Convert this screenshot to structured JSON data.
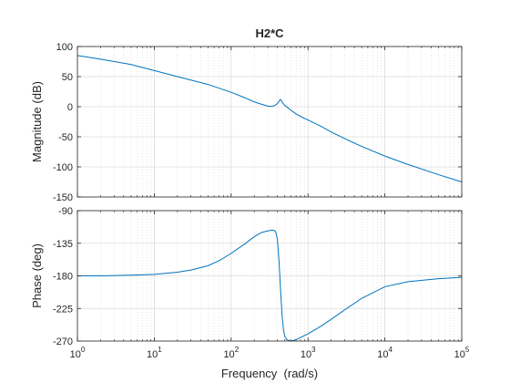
{
  "chart_data": [
    {
      "type": "line",
      "title": "H2*C",
      "xlabel": "",
      "ylabel": "Magnitude (dB)",
      "xscale": "log",
      "xlim": [
        1,
        100000
      ],
      "ylim": [
        -150,
        100
      ],
      "yticks": [
        100,
        50,
        0,
        -50,
        -100,
        -150
      ],
      "grid": true,
      "line_color": "#0072BD",
      "series": [
        {
          "x": [
            1,
            2,
            5,
            10,
            20,
            50,
            100,
            150,
            200,
            250,
            300,
            340,
            370,
            390,
            410,
            420,
            430,
            440,
            450,
            470,
            500,
            550,
            600,
            700,
            850,
            1000,
            1500,
            2000,
            3000,
            5000,
            10000,
            20000,
            50000,
            100000
          ],
          "y": [
            85,
            79,
            70,
            60,
            50,
            37,
            24,
            15,
            8,
            4,
            1,
            0.5,
            2,
            4,
            7,
            9,
            11,
            12,
            10,
            6,
            2,
            -2,
            -6,
            -12,
            -18,
            -22,
            -33,
            -42,
            -53,
            -66,
            -82,
            -96,
            -113,
            -125
          ]
        }
      ]
    },
    {
      "type": "line",
      "title": "",
      "xlabel": "Frequency  (rad/s)",
      "ylabel": "Phase (deg)",
      "xscale": "log",
      "xlim": [
        1,
        100000
      ],
      "ylim": [
        -270,
        -90
      ],
      "yticks": [
        -90,
        -135,
        -180,
        -225,
        -270
      ],
      "xticks": [
        "10",
        "10",
        "10",
        "10",
        "10",
        "10"
      ],
      "xtick_exponents": [
        "0",
        "1",
        "2",
        "3",
        "4",
        "5"
      ],
      "grid": true,
      "line_color": "#0072BD",
      "series": [
        {
          "x": [
            1,
            2,
            5,
            10,
            20,
            30,
            50,
            70,
            100,
            150,
            200,
            250,
            300,
            330,
            360,
            380,
            400,
            420,
            440,
            460,
            480,
            500,
            530,
            560,
            600,
            650,
            700,
            800,
            1000,
            1500,
            2000,
            3000,
            5000,
            10000,
            20000,
            50000,
            100000
          ],
          "y": [
            -180,
            -180,
            -179,
            -178,
            -175,
            -172,
            -166,
            -159,
            -149,
            -136,
            -126,
            -120,
            -118,
            -117,
            -117,
            -119,
            -130,
            -160,
            -200,
            -235,
            -255,
            -264,
            -268,
            -269,
            -270,
            -269,
            -268,
            -265,
            -260,
            -249,
            -240,
            -227,
            -211,
            -195,
            -188,
            -184,
            -182
          ]
        }
      ]
    }
  ]
}
